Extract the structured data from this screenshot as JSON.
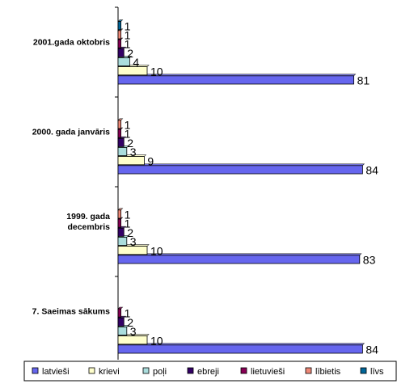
{
  "chart_data": {
    "type": "bar",
    "orientation": "horizontal",
    "categories": [
      "2001.gada oktobris",
      "2000. gada janvāris",
      "1999. gada decembris",
      "7. Saeimas sākums"
    ],
    "series": [
      {
        "name": "latvieši",
        "color": "#6666ee",
        "values": [
          81,
          84,
          83,
          84
        ]
      },
      {
        "name": "krievi",
        "color": "#ffffcc",
        "values": [
          10,
          9,
          10,
          10
        ]
      },
      {
        "name": "poļi",
        "color": "#aadddd",
        "values": [
          4,
          3,
          3,
          3
        ]
      },
      {
        "name": "ebreji",
        "color": "#330066",
        "values": [
          2,
          2,
          2,
          2
        ]
      },
      {
        "name": "lietuvieši",
        "color": "#880055",
        "values": [
          1,
          1,
          1,
          1
        ]
      },
      {
        "name": "lībietis",
        "color": "#ee8877",
        "values": [
          1,
          1,
          1,
          0
        ]
      },
      {
        "name": "līvs",
        "color": "#006699",
        "values": [
          1,
          0,
          0,
          0
        ]
      }
    ],
    "title": "",
    "xlabel": "",
    "ylabel": "",
    "xlim": [
      0,
      100
    ],
    "grid": false,
    "legend_position": "bottom"
  }
}
